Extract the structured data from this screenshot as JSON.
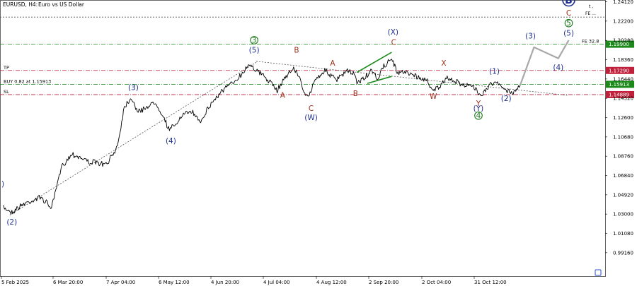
{
  "header": {
    "symbol": "EURUSD, H4:",
    "description": "Euro vs US Dollar",
    "corner_text_1": "t ,",
    "corner_text_2": "FE ..."
  },
  "colors": {
    "background": "#ffffff",
    "price": "#000000",
    "wave_blue": "#1f2f8f",
    "wave_red": "#a0301f",
    "wave_green": "#1f7a1f",
    "level_green": "#1b8a1b",
    "level_red": "#c0203a",
    "tag_red": "#c0203a",
    "tag_green": "#1b8a1b",
    "forecast": "#a8a8a8"
  },
  "chart_data": {
    "type": "line",
    "symbol": "EURUSD",
    "timeframe": "H4",
    "ylim": [
      0.969,
      1.243
    ],
    "y_ticks": [
      "1.24120",
      "1.22200",
      "1.20280",
      "1.18360",
      "1.16440",
      "1.14520",
      "1.12600",
      "1.10680",
      "1.08760",
      "1.06840",
      "1.04920",
      "1.03000",
      "1.01080",
      "0.99160"
    ],
    "x_ticks": [
      "5 Feb 2025",
      "6 Mar 20:00",
      "7 Apr 04:00",
      "6 May 12:00",
      "4 Jun 20:00",
      "4 Jul 04:00",
      "4 Aug 12:00",
      "2 Sep 20:00",
      "2 Oct 04:00",
      "31 Oct 12:00"
    ],
    "price_path": [
      [
        0.0,
        1.037
      ],
      [
        1.3,
        1.032
      ],
      [
        3.0,
        1.04
      ],
      [
        5.5,
        1.047
      ],
      [
        7.0,
        1.036
      ],
      [
        8.5,
        1.078
      ],
      [
        10.0,
        1.09
      ],
      [
        12.5,
        1.082
      ],
      [
        15.0,
        1.079
      ],
      [
        16.5,
        1.098
      ],
      [
        17.5,
        1.137
      ],
      [
        18.5,
        1.146
      ],
      [
        19.5,
        1.131
      ],
      [
        21.0,
        1.138
      ],
      [
        22.0,
        1.141
      ],
      [
        23.0,
        1.129
      ],
      [
        24.0,
        1.113
      ],
      [
        25.5,
        1.125
      ],
      [
        27.0,
        1.133
      ],
      [
        28.5,
        1.123
      ],
      [
        30.0,
        1.14
      ],
      [
        31.5,
        1.152
      ],
      [
        33.0,
        1.16
      ],
      [
        34.5,
        1.17
      ],
      [
        35.5,
        1.18
      ],
      [
        36.5,
        1.173
      ],
      [
        38.0,
        1.165
      ],
      [
        39.5,
        1.153
      ],
      [
        40.8,
        1.168
      ],
      [
        42.0,
        1.175
      ],
      [
        43.0,
        1.161
      ],
      [
        43.6,
        1.147
      ],
      [
        44.0,
        1.145
      ],
      [
        45.0,
        1.165
      ],
      [
        46.5,
        1.173
      ],
      [
        48.0,
        1.163
      ],
      [
        49.5,
        1.172
      ],
      [
        50.5,
        1.17
      ],
      [
        51.0,
        1.161
      ],
      [
        52.0,
        1.165
      ],
      [
        53.0,
        1.172
      ],
      [
        54.0,
        1.165
      ],
      [
        55.0,
        1.178
      ],
      [
        56.0,
        1.185
      ],
      [
        56.8,
        1.17
      ],
      [
        58.0,
        1.172
      ],
      [
        59.5,
        1.167
      ],
      [
        61.0,
        1.163
      ],
      [
        62.0,
        1.154
      ],
      [
        63.0,
        1.157
      ],
      [
        64.0,
        1.165
      ],
      [
        66.0,
        1.16
      ],
      [
        67.5,
        1.157
      ],
      [
        69.0,
        1.149
      ],
      [
        70.0,
        1.158
      ],
      [
        71.0,
        1.161
      ],
      [
        72.5,
        1.153
      ],
      [
        73.5,
        1.151
      ],
      [
        74.5,
        1.158
      ]
    ],
    "projection": [
      [
        74.5,
        1.158
      ],
      [
        76.5,
        1.196
      ],
      [
        80.0,
        1.185
      ],
      [
        81.5,
        1.203
      ]
    ],
    "levels": [
      {
        "name": "top-dotted",
        "value": 1.226,
        "color": "#555555",
        "style": "dotted",
        "label": "",
        "tag": ""
      },
      {
        "name": "target",
        "value": 1.199,
        "color": "#1b8a1b",
        "style": "dashdot",
        "label": "FE 32.8",
        "tag": "1.19900"
      },
      {
        "name": "take-profit",
        "value": 1.1729,
        "color": "#c0203a",
        "style": "dashdot",
        "label": "TP",
        "tag": "1.17290"
      },
      {
        "name": "buy",
        "value": 1.15913,
        "color": "#1b8a1b",
        "style": "dashdot",
        "label": "BUY 0.82 at 1.15913",
        "tag": "1.15913"
      },
      {
        "name": "stop-loss",
        "value": 1.14889,
        "color": "#c0203a",
        "style": "dashdot",
        "label": "SL",
        "tag": "1.14889"
      }
    ],
    "lines": [
      {
        "name": "support-trendline",
        "from": [
          1.0,
          1.029
        ],
        "to": [
          36.5,
          1.181
        ],
        "color": "#555555",
        "style": "dotted"
      },
      {
        "name": "resistance-trendline",
        "from": [
          36.5,
          1.182
        ],
        "to": [
          81.5,
          1.148
        ],
        "color": "#555555",
        "style": "dotted"
      },
      {
        "name": "channel-upper",
        "from": [
          51.0,
          1.171
        ],
        "to": [
          56.0,
          1.191
        ],
        "color": "#1b8a1b",
        "style": "solid"
      },
      {
        "name": "channel-lower",
        "from": [
          52.5,
          1.16
        ],
        "to": [
          56.0,
          1.167
        ],
        "color": "#1b8a1b",
        "style": "solid"
      }
    ],
    "annotations": [
      {
        "text": ")",
        "x": 0.0,
        "y": 1.06,
        "color": "blue",
        "circled": false
      },
      {
        "text": "(2)",
        "x": 1.3,
        "y": 1.022,
        "color": "blue",
        "circled": false
      },
      {
        "text": "(3)",
        "x": 18.8,
        "y": 1.156,
        "color": "blue",
        "circled": false
      },
      {
        "text": "(4)",
        "x": 24.2,
        "y": 1.103,
        "color": "blue",
        "circled": false
      },
      {
        "text": "(5)",
        "x": 36.2,
        "y": 1.193,
        "color": "blue",
        "circled": false
      },
      {
        "text": "3",
        "x": 36.2,
        "y": 1.203,
        "color": "green",
        "circled": true
      },
      {
        "text": "B",
        "x": 42.3,
        "y": 1.193,
        "color": "red",
        "circled": false
      },
      {
        "text": "A",
        "x": 40.3,
        "y": 1.148,
        "color": "red",
        "circled": false
      },
      {
        "text": "C",
        "x": 44.4,
        "y": 1.135,
        "color": "red",
        "circled": false
      },
      {
        "text": "(W)",
        "x": 44.4,
        "y": 1.126,
        "color": "blue",
        "circled": false
      },
      {
        "text": "A",
        "x": 47.5,
        "y": 1.18,
        "color": "red",
        "circled": false
      },
      {
        "text": "B",
        "x": 50.8,
        "y": 1.15,
        "color": "red",
        "circled": false
      },
      {
        "text": "C",
        "x": 56.3,
        "y": 1.201,
        "color": "red",
        "circled": false
      },
      {
        "text": "(X)",
        "x": 56.2,
        "y": 1.211,
        "color": "blue",
        "circled": false
      },
      {
        "text": "X",
        "x": 63.5,
        "y": 1.18,
        "color": "red",
        "circled": false
      },
      {
        "text": "W",
        "x": 62.0,
        "y": 1.147,
        "color": "red",
        "circled": false
      },
      {
        "text": "Y",
        "x": 68.5,
        "y": 1.14,
        "color": "red",
        "circled": false
      },
      {
        "text": "(Y)",
        "x": 68.5,
        "y": 1.135,
        "color": "blue",
        "circled": false
      },
      {
        "text": "4",
        "x": 68.5,
        "y": 1.128,
        "color": "green",
        "circled": true
      },
      {
        "text": "(1)",
        "x": 70.8,
        "y": 1.172,
        "color": "blue",
        "circled": false
      },
      {
        "text": "(2)",
        "x": 72.5,
        "y": 1.145,
        "color": "blue",
        "circled": false
      },
      {
        "text": "(3)",
        "x": 76.0,
        "y": 1.207,
        "color": "blue",
        "circled": false
      },
      {
        "text": "(4)",
        "x": 80.0,
        "y": 1.176,
        "color": "blue",
        "circled": false
      },
      {
        "text": "(5)",
        "x": 81.5,
        "y": 1.21,
        "color": "blue",
        "circled": false
      },
      {
        "text": "5",
        "x": 81.5,
        "y": 1.22,
        "color": "green",
        "circled": true
      },
      {
        "text": "C",
        "x": 81.5,
        "y": 1.23,
        "color": "red",
        "circled": false
      },
      {
        "text": "B",
        "x": 81.5,
        "y": 1.243,
        "color": "blue",
        "circled": true
      }
    ]
  }
}
